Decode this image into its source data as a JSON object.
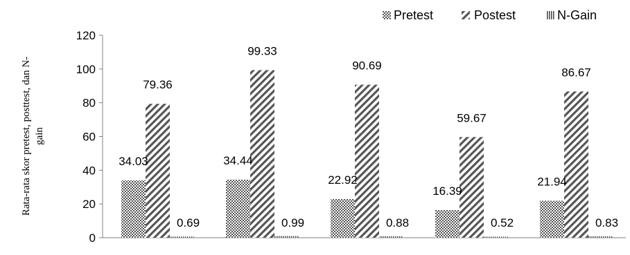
{
  "chart_data": {
    "type": "bar",
    "categories": [
      "",
      "",
      "",
      "",
      ""
    ],
    "series": [
      {
        "name": "Pretest",
        "values": [
          34.03,
          34.44,
          22.92,
          16.39,
          21.94
        ],
        "labels": [
          "34.03",
          "34.44",
          "22.92",
          "16.39",
          "21.94"
        ]
      },
      {
        "name": "Postest",
        "values": [
          79.36,
          99.33,
          90.69,
          59.67,
          86.67
        ],
        "labels": [
          "79.36",
          "99.33",
          "90.69",
          "59.67",
          "86.67"
        ]
      },
      {
        "name": "N-Gain",
        "values": [
          0.69,
          0.99,
          0.88,
          0.52,
          0.83
        ],
        "labels": [
          "0.69",
          "0.99",
          "0.88",
          "0.52",
          "0.83"
        ]
      }
    ],
    "title": "",
    "xlabel": "",
    "ylabel_lines": [
      "Rata-rata skor pretest, posttest, dan N-",
      "gain"
    ],
    "ylim": [
      0,
      120
    ],
    "yticks": [
      0,
      20,
      40,
      60,
      80,
      100,
      120
    ],
    "ytick_labels": [
      "0",
      "20",
      "40",
      "60",
      "80",
      "100",
      "120"
    ],
    "grid": false,
    "legend_position": "top-right"
  }
}
